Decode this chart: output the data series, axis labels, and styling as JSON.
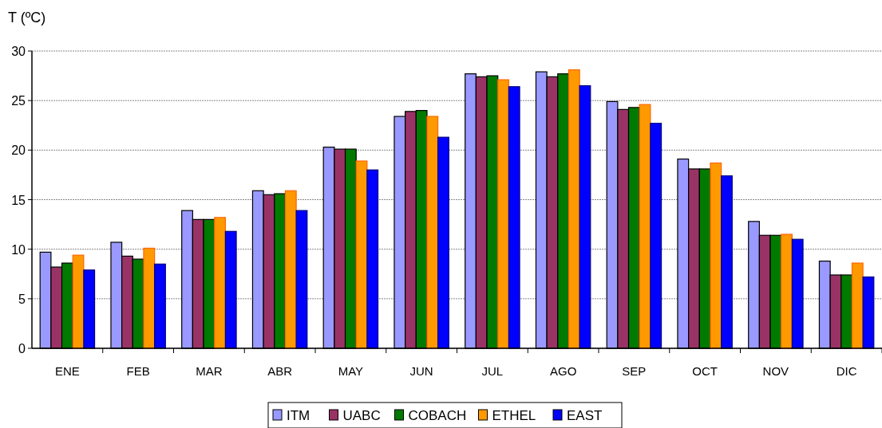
{
  "chart_data": {
    "type": "bar",
    "ylabel": "T (ºC)",
    "categories": [
      "ENE",
      "FEB",
      "MAR",
      "ABR",
      "MAY",
      "JUN",
      "JUL",
      "AGO",
      "SEP",
      "OCT",
      "NOV",
      "DIC"
    ],
    "series": [
      {
        "name": "ITM",
        "color": "#9999ff",
        "values": [
          9.7,
          10.7,
          13.9,
          15.9,
          20.3,
          23.4,
          27.7,
          27.9,
          24.9,
          19.1,
          12.8,
          8.8
        ]
      },
      {
        "name": "UABC",
        "color": "#993366",
        "values": [
          8.2,
          9.3,
          13.0,
          15.5,
          20.1,
          23.9,
          27.4,
          27.4,
          24.1,
          18.1,
          11.4,
          7.4
        ]
      },
      {
        "name": "COBACH",
        "color": "#007a00",
        "values": [
          8.6,
          9.0,
          13.0,
          15.6,
          20.1,
          24.0,
          27.5,
          27.7,
          24.3,
          18.1,
          11.4,
          7.4
        ]
      },
      {
        "name": "ETHEL",
        "color": "#ff9900",
        "values": [
          9.4,
          10.1,
          13.2,
          15.9,
          18.9,
          23.4,
          27.1,
          28.1,
          24.6,
          18.7,
          11.5,
          8.6
        ]
      },
      {
        "name": "EAST",
        "color": "#0000ff",
        "values": [
          7.9,
          8.5,
          11.8,
          13.9,
          18.0,
          21.3,
          26.4,
          26.5,
          22.7,
          17.4,
          11.0,
          7.2
        ]
      }
    ],
    "ylim": [
      0,
      30
    ],
    "yticks": [
      0,
      5,
      10,
      15,
      20,
      25,
      30
    ],
    "grid": "y",
    "legend": "bottom"
  }
}
